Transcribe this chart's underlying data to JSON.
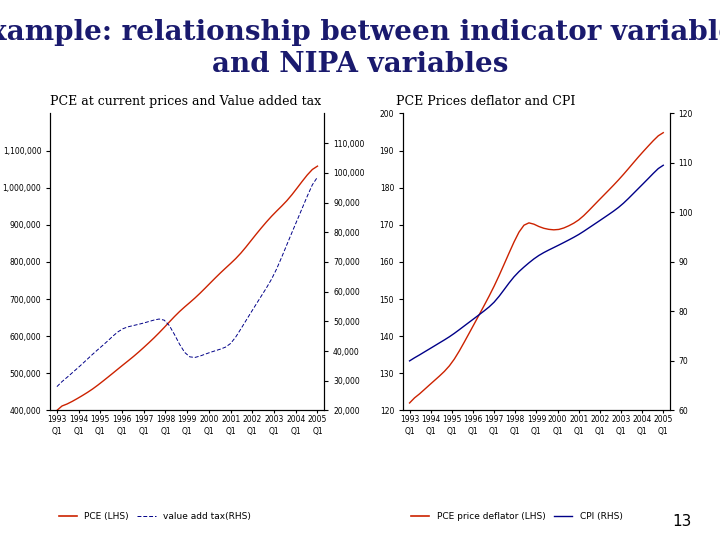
{
  "title_line1": "Example: relationship between indicator variables",
  "title_line2": "and NIPA variables",
  "title_color": "#1a1a6e",
  "title_fontsize": 20,
  "chart1_title": "PCE at current prices and Value added tax",
  "chart2_title": "PCE Prices deflator and CPI",
  "page_number": "13",
  "chart1_ylim_lhs": [
    400000,
    1200000
  ],
  "chart1_ylim_rhs": [
    20000,
    120000
  ],
  "chart1_yticks_lhs": [
    400000,
    500000,
    600000,
    700000,
    800000,
    900000,
    1000000,
    1100000
  ],
  "chart1_yticks_rhs": [
    20000,
    30000,
    40000,
    50000,
    60000,
    70000,
    80000,
    90000,
    100000,
    110000
  ],
  "chart2_ylim_lhs": [
    120,
    200
  ],
  "chart2_ylim_rhs": [
    60,
    120
  ],
  "chart2_yticks_lhs": [
    120,
    130,
    140,
    150,
    160,
    170,
    180,
    190,
    200
  ],
  "chart2_yticks_rhs": [
    60,
    70,
    80,
    90,
    100,
    110,
    120
  ],
  "red_color": "#cc2200",
  "blue_color": "#000088",
  "legend1_lhs": "PCE (LHS)",
  "legend1_rhs": "value add tax(RHS)",
  "legend2_lhs": "PCE price deflator (LHS)",
  "legend2_rhs": "CPI (RHS)",
  "background_color": "#ffffff",
  "tick_fontsize": 5.5,
  "subtitle_fontsize": 9,
  "legend_fontsize": 6.5
}
